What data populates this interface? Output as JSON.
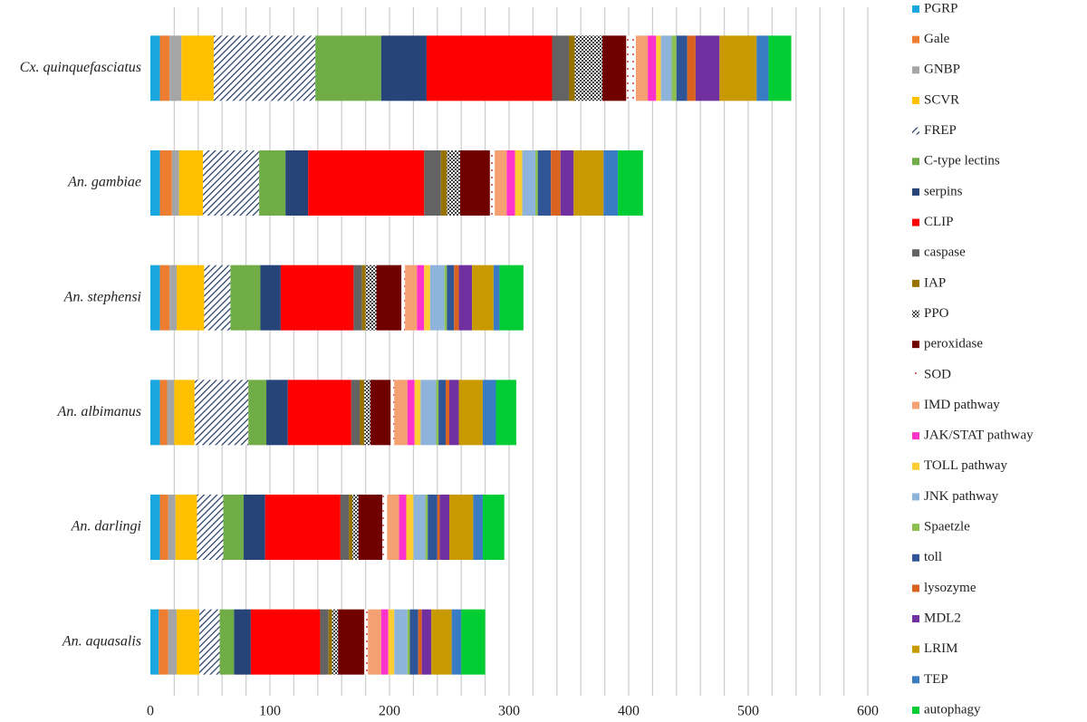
{
  "chart_data": {
    "type": "stacked-barh",
    "categories": [
      "Cx. quinquefasciatus",
      "An. gambiae",
      "An. stephensi",
      "An. albimanus",
      "An. darlingi",
      "An. aquasalis"
    ],
    "xlim": [
      0,
      600
    ],
    "xticks": [
      0,
      100,
      200,
      300,
      400,
      500,
      600
    ],
    "xgrid": [
      20,
      40,
      60,
      80,
      100,
      120,
      140,
      160,
      180,
      200,
      220,
      240,
      260,
      280,
      300,
      320,
      340,
      360,
      380,
      400,
      420,
      440,
      460,
      480,
      500,
      520,
      540,
      560,
      580,
      600
    ],
    "grid": true,
    "legend": "right",
    "series": [
      {
        "name": "PGRP",
        "color": "#1aa7e0",
        "values": [
          8,
          8,
          8,
          8,
          8,
          7
        ]
      },
      {
        "name": "Gale",
        "color": "#ed7d31",
        "values": [
          8,
          10,
          8,
          6,
          7,
          8
        ]
      },
      {
        "name": "GNBP",
        "color": "#a5a5a5",
        "values": [
          10,
          6,
          6,
          6,
          6,
          7
        ]
      },
      {
        "name": "SCVR",
        "color": "#ffc000",
        "values": [
          27,
          20,
          23,
          17,
          18,
          19
        ]
      },
      {
        "name": "FREP",
        "color": "#1f3864",
        "pattern": "hatch",
        "values": [
          85,
          47,
          22,
          45,
          22,
          17
        ]
      },
      {
        "name": "C-type lectins",
        "color": "#70ad47",
        "values": [
          55,
          22,
          25,
          15,
          17,
          12
        ]
      },
      {
        "name": "serpins",
        "color": "#264478",
        "values": [
          38,
          19,
          17,
          18,
          18,
          14
        ]
      },
      {
        "name": "CLIP",
        "color": "#ff0000",
        "values": [
          105,
          97,
          61,
          53,
          63,
          58
        ]
      },
      {
        "name": "caspase",
        "color": "#636363",
        "values": [
          14,
          14,
          7,
          7,
          7,
          7
        ]
      },
      {
        "name": "IAP",
        "color": "#997300",
        "values": [
          5,
          5,
          3,
          4,
          3,
          3
        ]
      },
      {
        "name": "PPO",
        "color": "#404040",
        "pattern": "checker",
        "values": [
          23,
          11,
          9,
          5,
          5,
          5
        ]
      },
      {
        "name": "peroxidase",
        "color": "#700000",
        "values": [
          20,
          25,
          21,
          17,
          20,
          22
        ]
      },
      {
        "name": "SOD",
        "color": "#c00000",
        "pattern": "dots",
        "values": [
          8,
          4,
          3,
          3,
          4,
          3
        ]
      },
      {
        "name": "IMD pathway",
        "color": "#f4a070",
        "values": [
          10,
          10,
          10,
          11,
          10,
          11
        ]
      },
      {
        "name": "JAK/STAT pathway",
        "color": "#ff33cc",
        "values": [
          7,
          7,
          6,
          6,
          6,
          6
        ]
      },
      {
        "name": "TOLL pathway",
        "color": "#ffcc33",
        "values": [
          4,
          6,
          5,
          5,
          6,
          5
        ]
      },
      {
        "name": "JNK pathway",
        "color": "#8fb4dc",
        "values": [
          9,
          11,
          12,
          13,
          10,
          11
        ]
      },
      {
        "name": "Spaetzle",
        "color": "#8cc152",
        "values": [
          4,
          2,
          2,
          2,
          2,
          2
        ]
      },
      {
        "name": "toll",
        "color": "#2f5597",
        "values": [
          9,
          11,
          6,
          6,
          8,
          7
        ]
      },
      {
        "name": "lysozyme",
        "color": "#d9631e",
        "values": [
          7,
          8,
          4,
          3,
          2,
          3
        ]
      },
      {
        "name": "MDL2",
        "color": "#7030a0",
        "values": [
          20,
          11,
          11,
          8,
          8,
          8
        ]
      },
      {
        "name": "LRIM",
        "color": "#c99a00",
        "values": [
          31,
          25,
          18,
          20,
          20,
          17
        ]
      },
      {
        "name": "TEP",
        "color": "#3a7cc4",
        "values": [
          10,
          12,
          5,
          11,
          8,
          8
        ]
      },
      {
        "name": "autophagy",
        "color": "#00cc33",
        "values": [
          19,
          21,
          20,
          17,
          18,
          20
        ]
      }
    ]
  }
}
